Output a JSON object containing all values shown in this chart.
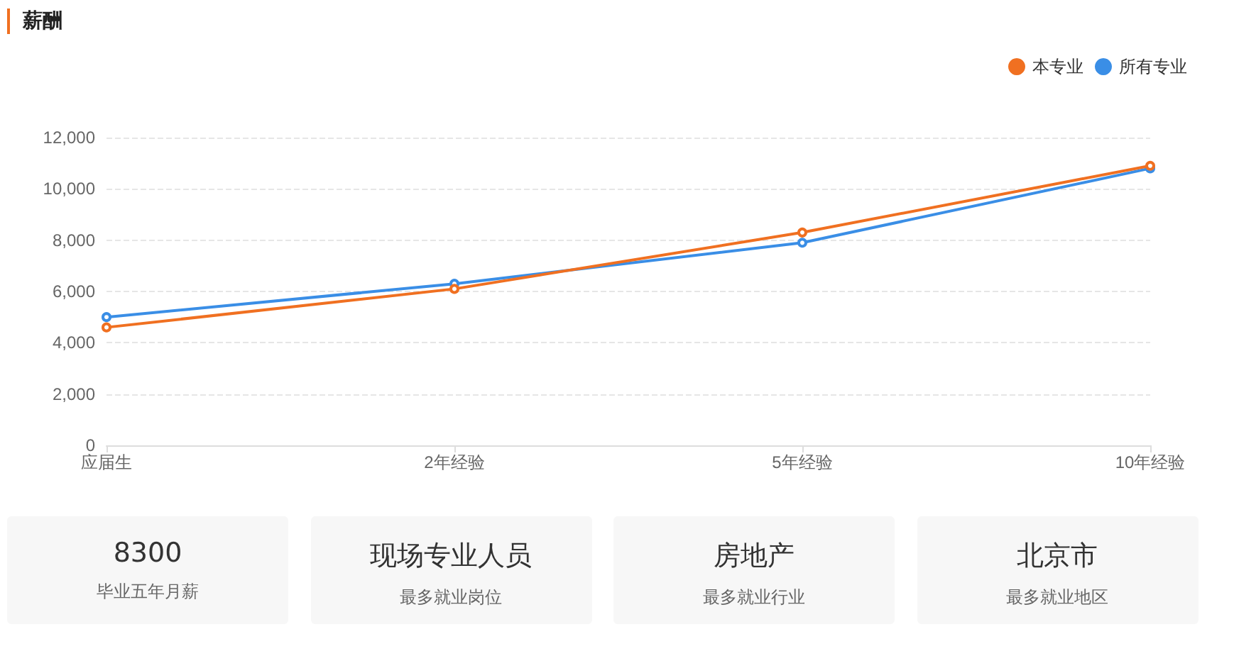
{
  "chart_data": [
    {
      "type": "line",
      "title": "薪酬",
      "categories": [
        "应届生",
        "2年经验",
        "5年经验",
        "10年经验"
      ],
      "series": [
        {
          "name": "本专业",
          "color": "#f07021",
          "values": [
            4600,
            6100,
            8300,
            10900
          ]
        },
        {
          "name": "所有专业",
          "color": "#3a8ee6",
          "values": [
            5000,
            6300,
            7900,
            10800
          ]
        }
      ],
      "ylim": [
        0,
        12000
      ],
      "yticks": [
        0,
        {
          "value": 2000,
          "label": "2,000"
        },
        {
          "value": 4000,
          "label": "4,000"
        },
        {
          "value": 6000,
          "label": "6,000"
        },
        {
          "value": 8000,
          "label": "8,000"
        },
        {
          "value": 10000,
          "label": "10,000"
        },
        {
          "value": 12000,
          "label": "12,000"
        }
      ],
      "grid": "y",
      "legend": "top right",
      "marker": "circle",
      "line_style": "solid"
    },
    {
      "type": "other",
      "annotations": [
        "8300",
        "毕业五年月薪",
        "现场专业人员",
        "最多就业岗位",
        "房地产",
        "最多就业行业",
        "北京市",
        "最多就业地区"
      ]
    }
  ]
}
